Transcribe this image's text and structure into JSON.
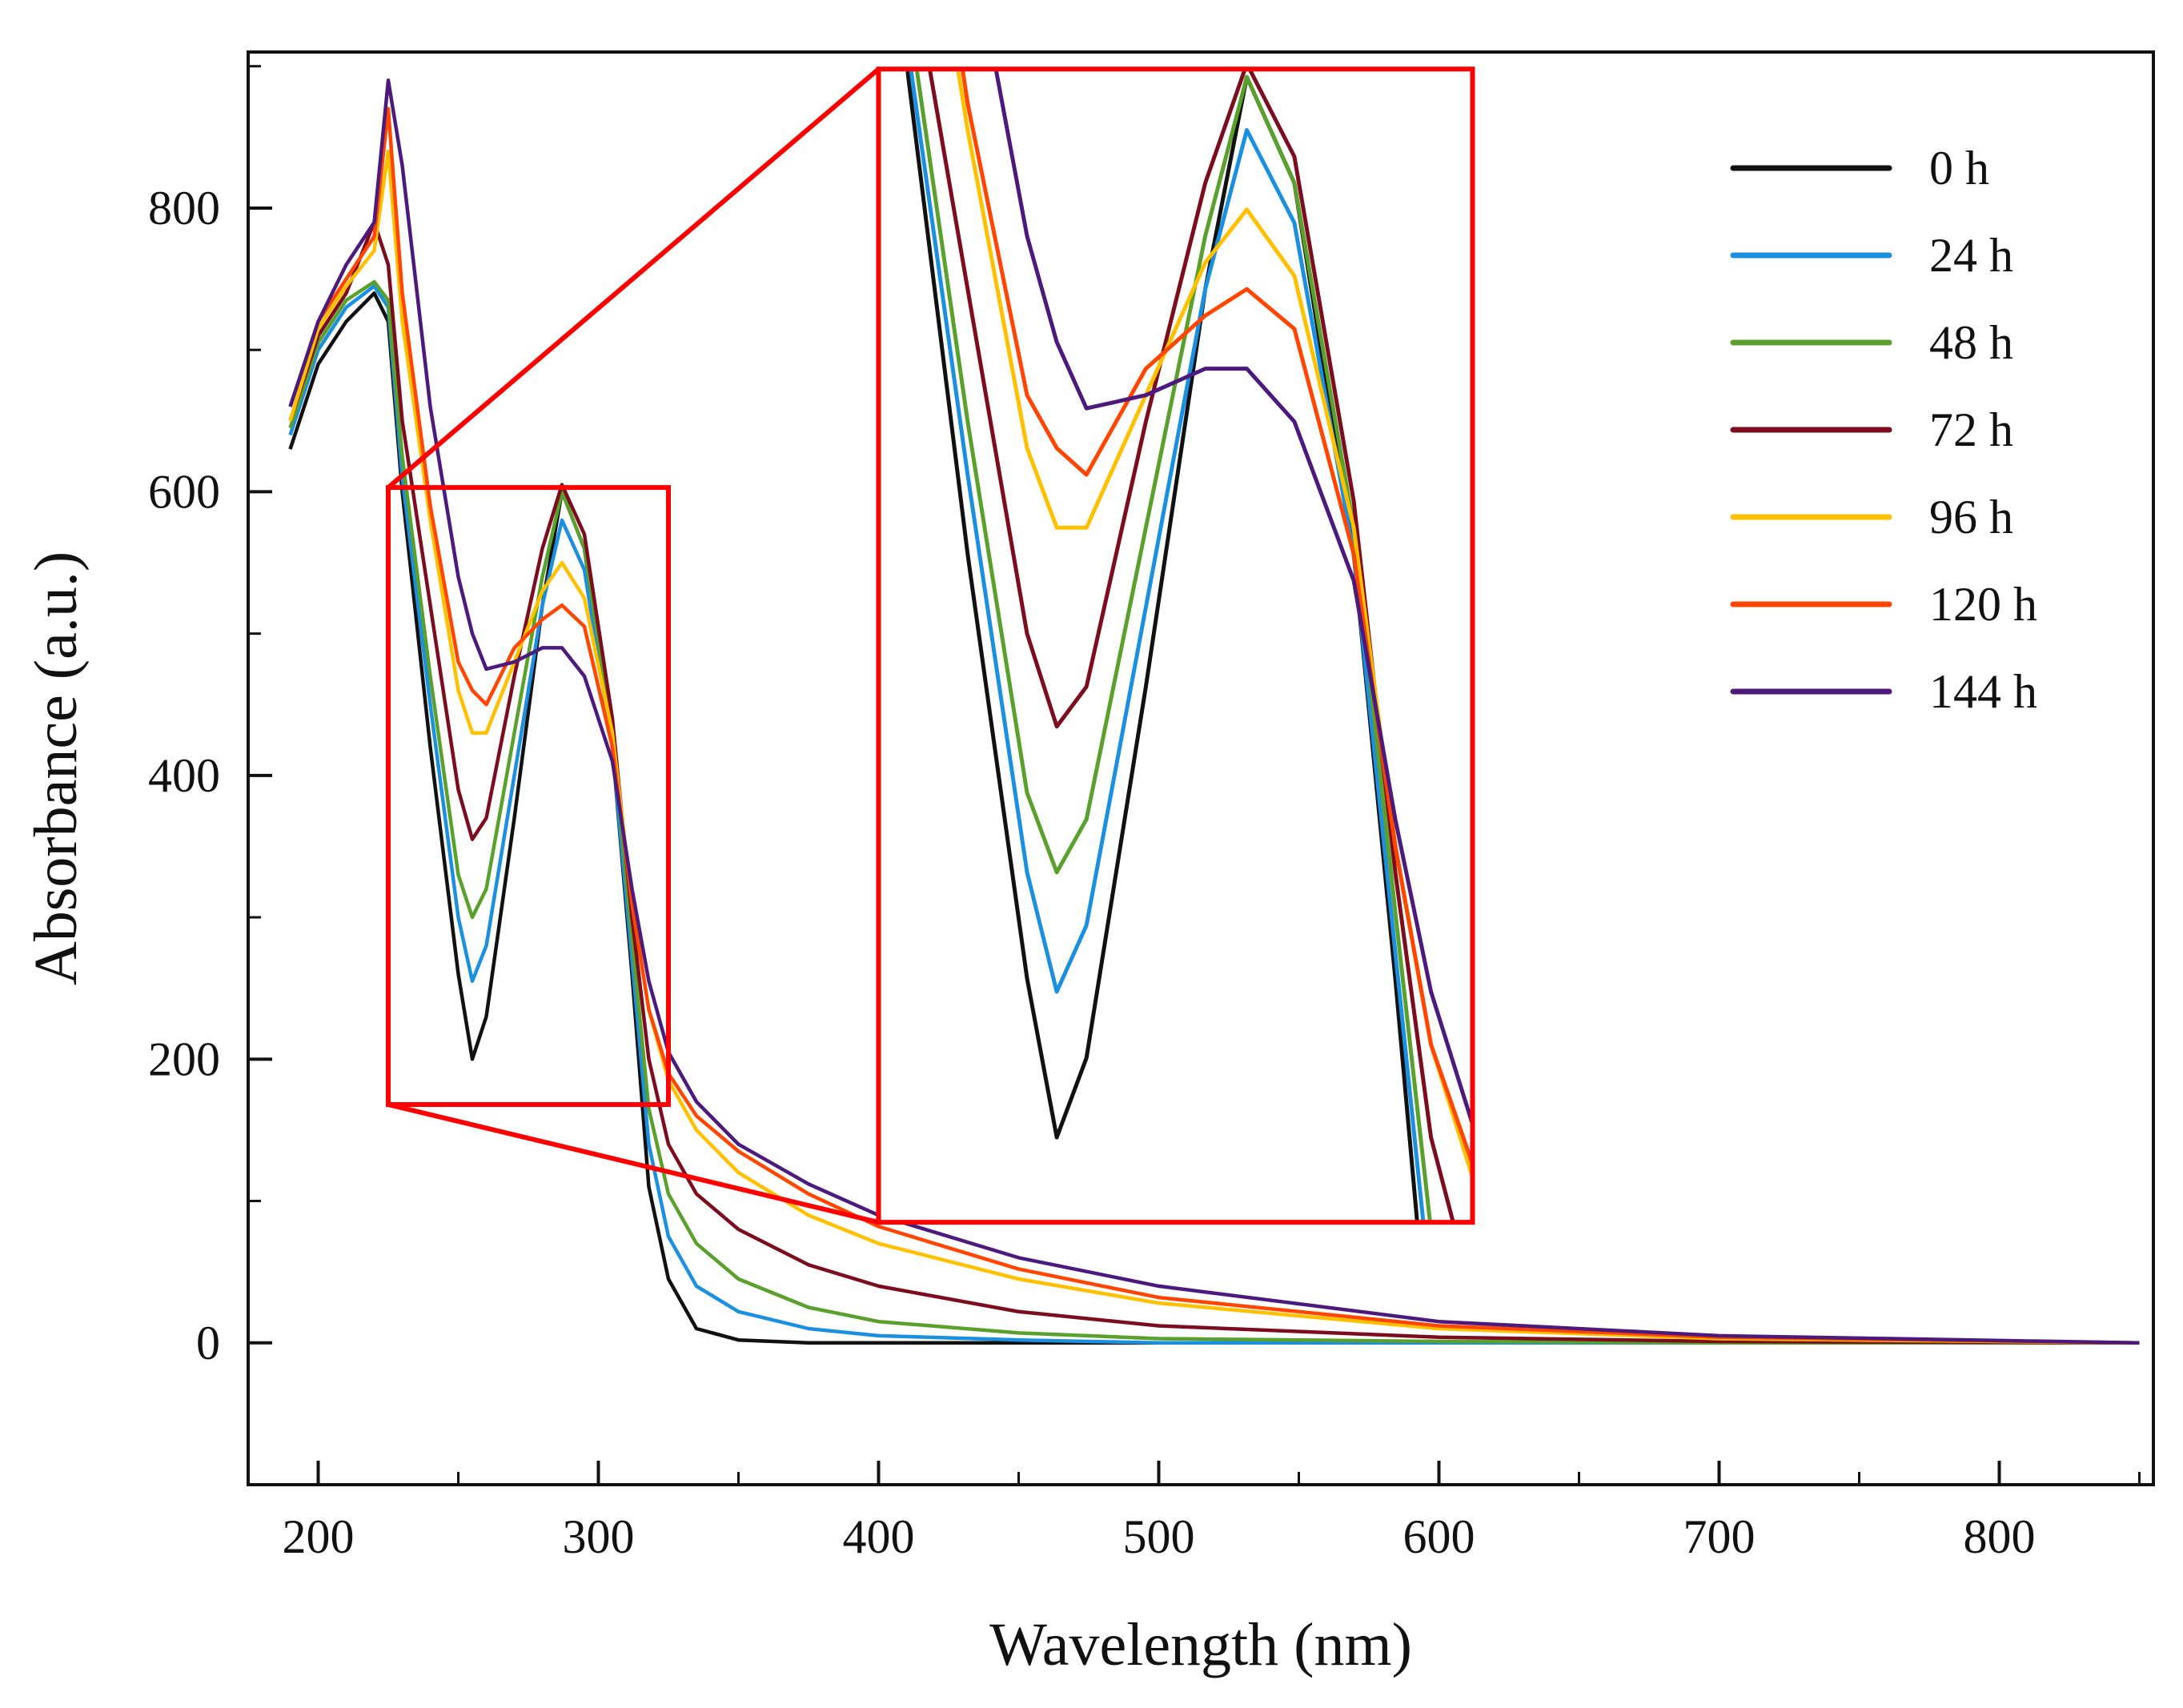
{
  "chart_data": {
    "type": "line",
    "title": "",
    "xlabel": "Wavelength (nm)",
    "ylabel": "Absorbance (a.u.)",
    "xlim": [
      175,
      855
    ],
    "ylim": [
      -100,
      910
    ],
    "xticks": [
      200,
      300,
      400,
      500,
      600,
      700,
      800
    ],
    "xtick_labels": [
      "200",
      "300",
      "400",
      "500",
      "600",
      "700",
      "800"
    ],
    "yticks": [
      0,
      200,
      400,
      600,
      800
    ],
    "ytick_labels": [
      "0",
      "200",
      "400",
      "600",
      "800"
    ],
    "grid": false,
    "legend_position": "top-right",
    "x": [
      190,
      200,
      210,
      220,
      225,
      230,
      240,
      250,
      255,
      260,
      270,
      280,
      287,
      295,
      305,
      312,
      318,
      325,
      335,
      350,
      375,
      400,
      450,
      500,
      600,
      700,
      850
    ],
    "series": [
      {
        "name": "0 h",
        "color": "#111111",
        "values": [
          630,
          690,
          720,
          740,
          720,
          600,
          420,
          260,
          200,
          230,
          370,
          520,
          600,
          560,
          420,
          260,
          110,
          45,
          10,
          2,
          0,
          0,
          0,
          0,
          0,
          0,
          0
        ]
      },
      {
        "name": "24 h",
        "color": "#1b8fe0",
        "values": [
          640,
          700,
          730,
          745,
          730,
          610,
          450,
          300,
          255,
          280,
          400,
          520,
          580,
          545,
          420,
          270,
          140,
          75,
          40,
          22,
          10,
          5,
          2,
          0,
          0,
          0,
          0
        ]
      },
      {
        "name": "48 h",
        "color": "#5aa02c",
        "values": [
          645,
          705,
          735,
          748,
          735,
          625,
          470,
          330,
          300,
          320,
          430,
          540,
          600,
          560,
          430,
          285,
          165,
          105,
          70,
          45,
          25,
          15,
          7,
          3,
          1,
          0,
          0
        ]
      },
      {
        "name": "72 h",
        "color": "#7b0d1e",
        "values": [
          650,
          710,
          740,
          790,
          760,
          650,
          520,
          390,
          355,
          370,
          470,
          560,
          605,
          570,
          440,
          300,
          200,
          140,
          105,
          80,
          55,
          40,
          22,
          12,
          4,
          1,
          0
        ]
      },
      {
        "name": "96 h",
        "color": "#ffc000",
        "values": [
          650,
          715,
          745,
          770,
          840,
          720,
          580,
          460,
          430,
          430,
          480,
          530,
          550,
          525,
          430,
          310,
          235,
          185,
          150,
          120,
          90,
          70,
          45,
          28,
          10,
          3,
          0
        ]
      },
      {
        "name": "120 h",
        "color": "#ff4500",
        "values": [
          660,
          720,
          750,
          780,
          870,
          740,
          590,
          480,
          460,
          450,
          490,
          510,
          520,
          505,
          420,
          310,
          235,
          190,
          160,
          135,
          105,
          82,
          52,
          32,
          12,
          4,
          0
        ]
      },
      {
        "name": "144 h",
        "color": "#4b1a7c",
        "values": [
          660,
          720,
          760,
          790,
          890,
          830,
          660,
          540,
          500,
          475,
          480,
          490,
          490,
          470,
          410,
          320,
          255,
          205,
          170,
          140,
          112,
          90,
          60,
          40,
          15,
          5,
          0
        ]
      }
    ],
    "inset": {
      "source_box_x": [
        225,
        325
      ],
      "source_box_y": [
        168,
        603
      ],
      "display_box_x": [
        400,
        612
      ],
      "display_box_y": [
        85,
        898
      ],
      "color": "#ff0000"
    }
  }
}
